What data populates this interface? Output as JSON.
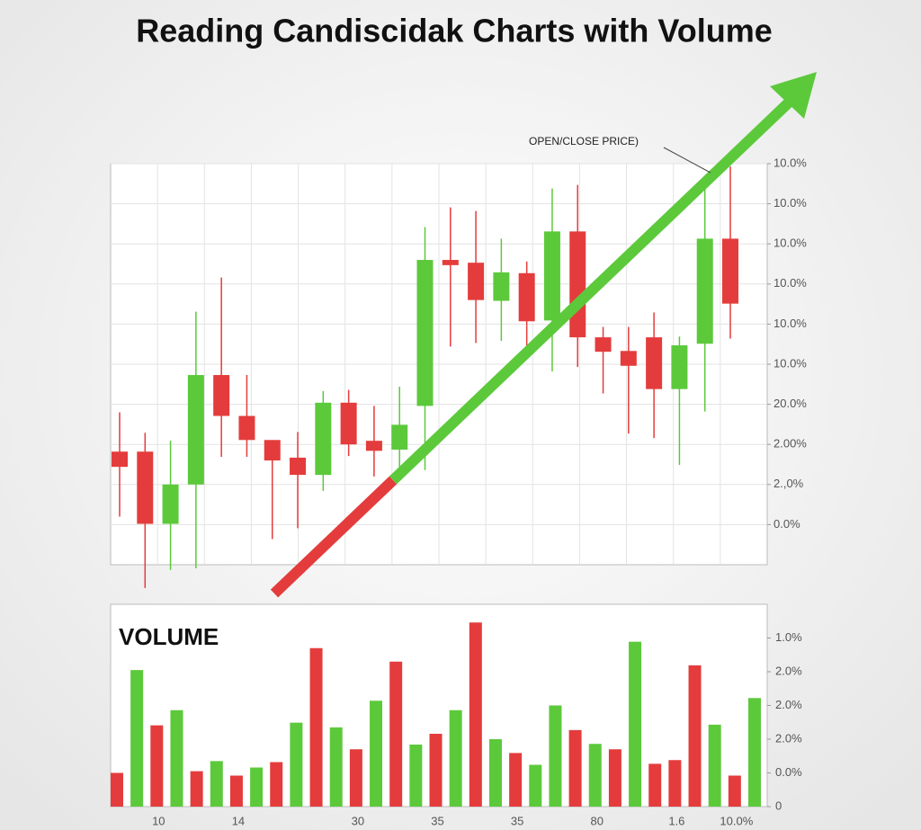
{
  "chart_data": [
    {
      "type": "candlestick",
      "title": "Reading Candiscidak Charts with Volume",
      "annotation": "OPEN/CLOSE PRICE)",
      "up_color": "#5cc93b",
      "down_color": "#e43c3c",
      "open": [
        1.82,
        1.82,
        0.02,
        1.0,
        3.73,
        2.71,
        2.11,
        1.67,
        1.24,
        3.04,
        2.09,
        1.87,
        2.96,
        6.6,
        6.53,
        5.58,
        6.27,
        5.09,
        7.31,
        4.67,
        4.33,
        4.67,
        3.38,
        4.51,
        7.13
      ],
      "high": [
        2.8,
        2.29,
        2.09,
        5.31,
        6.16,
        3.73,
        2.11,
        2.31,
        3.33,
        3.36,
        2.96,
        3.44,
        7.42,
        7.91,
        7.82,
        7.13,
        6.56,
        8.38,
        8.47,
        4.93,
        4.93,
        5.29,
        4.69,
        8.42,
        8.93
      ],
      "low": [
        0.2,
        -1.58,
        -1.13,
        -1.09,
        1.69,
        1.69,
        -0.36,
        -0.09,
        0.84,
        1.71,
        1.2,
        1.27,
        1.36,
        4.44,
        4.53,
        4.58,
        4.36,
        3.82,
        3.93,
        3.27,
        2.27,
        2.16,
        1.49,
        2.82,
        4.64
      ],
      "close": [
        1.44,
        0.02,
        1.0,
        3.73,
        2.71,
        2.11,
        1.6,
        1.24,
        3.04,
        2.0,
        1.84,
        2.49,
        6.6,
        6.47,
        5.6,
        6.29,
        5.07,
        7.31,
        4.67,
        4.31,
        3.96,
        3.38,
        4.47,
        7.13,
        5.51
      ],
      "ylim": [
        -1,
        9
      ],
      "yticks": [
        {
          "value": 0,
          "label": "0.0%"
        },
        {
          "value": 1,
          "label": "2.,0%"
        },
        {
          "value": 2,
          "label": "2.00%"
        },
        {
          "value": 3,
          "label": "20.0%"
        },
        {
          "value": 4,
          "label": "10.0%"
        },
        {
          "value": 5,
          "label": "10.0%"
        },
        {
          "value": 6,
          "label": "10.0%"
        },
        {
          "value": 7,
          "label": "10.0%"
        },
        {
          "value": 8,
          "label": "10.0%"
        },
        {
          "value": 9,
          "label": "10.0%"
        }
      ],
      "grid": true
    },
    {
      "type": "bar",
      "title": "VOLUME",
      "categories": [
        null,
        null,
        "10",
        null,
        null,
        null,
        "14",
        null,
        null,
        null,
        null,
        null,
        "30",
        null,
        null,
        null,
        "35",
        null,
        null,
        null,
        "35",
        null,
        null,
        null,
        "80",
        null,
        null,
        null,
        "1.6",
        null,
        null,
        "10.0%",
        null
      ],
      "values": [
        1.0,
        4.05,
        2.41,
        2.86,
        1.05,
        1.35,
        0.92,
        1.16,
        1.32,
        2.49,
        4.7,
        2.35,
        1.7,
        3.14,
        4.3,
        1.84,
        2.16,
        2.86,
        5.46,
        2.0,
        1.59,
        1.24,
        3.0,
        2.27,
        1.86,
        1.7,
        4.89,
        1.27,
        1.38,
        4.19,
        2.43,
        0.92,
        3.22
      ],
      "colors": [
        "#e43c3c",
        "#5cc93b",
        "#e43c3c",
        "#5cc93b",
        "#e43c3c",
        "#5cc93b",
        "#e43c3c",
        "#5cc93b",
        "#e43c3c",
        "#5cc93b",
        "#e43c3c",
        "#5cc93b",
        "#e43c3c",
        "#5cc93b",
        "#e43c3c",
        "#5cc93b",
        "#e43c3c",
        "#5cc93b",
        "#e43c3c",
        "#5cc93b",
        "#e43c3c",
        "#5cc93b",
        "#5cc93b",
        "#e43c3c",
        "#5cc93b",
        "#e43c3c",
        "#5cc93b",
        "#e43c3c",
        "#e43c3c",
        "#e43c3c",
        "#5cc93b",
        "#e43c3c",
        "#5cc93b"
      ],
      "ylim": [
        0,
        6
      ],
      "yticks": [
        0,
        {
          "value": 1,
          "label": "0.0%"
        },
        {
          "value": 2,
          "label": "2.0%"
        },
        {
          "value": 3,
          "label": "2.0%"
        },
        {
          "value": 4,
          "label": "2.0%"
        },
        {
          "value": 5,
          "label": "1.0%"
        }
      ]
    }
  ]
}
